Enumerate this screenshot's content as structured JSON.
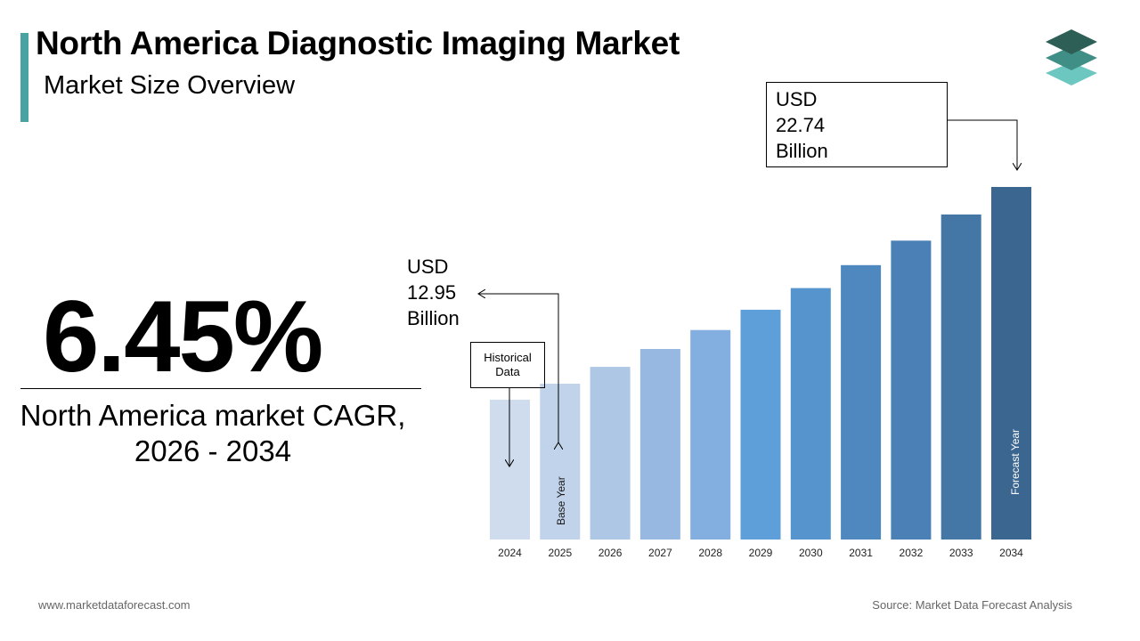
{
  "header": {
    "title": "North America Diagnostic Imaging Market",
    "subtitle": "Market Size Overview"
  },
  "cagr": {
    "value": "6.45%",
    "label_line1": "North America market CAGR,",
    "label_line2": "2026 - 2034"
  },
  "callouts": {
    "start": {
      "line1": "USD",
      "line2": "12.95",
      "line3": "Billion"
    },
    "end": {
      "line1": "USD",
      "line2": "22.74",
      "line3": "Billion"
    },
    "historical_line1": "Historical",
    "historical_line2": "Data",
    "base_year": "Base Year",
    "forecast_year": "Forecast Year"
  },
  "footer": {
    "website": "www.marketdataforecast.com",
    "source": "Source: Market Data Forecast Analysis"
  },
  "logo_icon": "stacked-layers-icon",
  "colors": {
    "accent": "#4aa3a0",
    "bars": [
      "#cfdcee",
      "#c0d3ea",
      "#adc7e5",
      "#97b9e1",
      "#83afe0",
      "#5f9fd9",
      "#5694cd",
      "#4f88bf",
      "#4a80b5",
      "#4476a6",
      "#3b6690"
    ]
  },
  "chart_data": {
    "type": "bar",
    "categories": [
      "2024",
      "2025",
      "2026",
      "2027",
      "2028",
      "2029",
      "2030",
      "2031",
      "2032",
      "2033",
      "2034"
    ],
    "values": [
      12.16,
      12.95,
      13.79,
      14.68,
      15.62,
      16.63,
      17.71,
      18.85,
      20.07,
      21.37,
      22.74
    ],
    "ylim": [
      5.2,
      22.74
    ],
    "title": "",
    "xlabel": "",
    "ylabel": "",
    "grid": false,
    "legend": "none"
  }
}
